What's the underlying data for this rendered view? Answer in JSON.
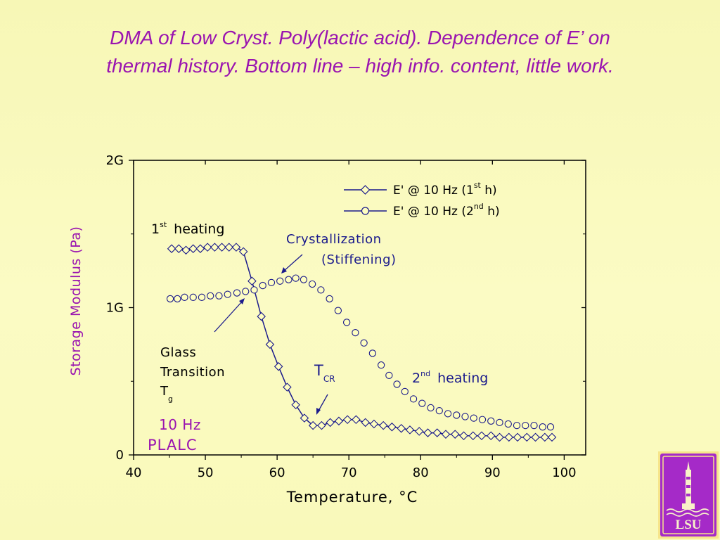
{
  "slide": {
    "title_line1": "DMA of Low Cryst. Poly(lactic acid). Dependence of E’ on",
    "title_line2": "thermal history.  Bottom line – high info. content, little work."
  },
  "logo": {
    "text": "LSU",
    "icon": "lsu-tower-logo"
  },
  "colors": {
    "background": "#fafabf",
    "accent": "#9a14b0",
    "series": "#1a1a8c"
  },
  "chart_data": {
    "type": "line",
    "xlabel": "Temperature, °C",
    "ylabel": "Storage Modulus (Pa)",
    "xlim": [
      40,
      103
    ],
    "ylim": [
      0,
      2
    ],
    "x_ticks": [
      40,
      50,
      60,
      70,
      80,
      90,
      100
    ],
    "x_tick_labels": [
      "40",
      "50",
      "60",
      "70",
      "80",
      "90",
      "100"
    ],
    "y_ticks": [
      0,
      1,
      2
    ],
    "y_tick_labels": [
      "0",
      "1G",
      "2G"
    ],
    "y_unit": "G (10^9 Pa)",
    "grid": false,
    "legend_position": "top-right",
    "legend": [
      {
        "marker": "diamond",
        "prefix": "E' @  10 Hz (1",
        "sup": "st",
        "suffix": " h)"
      },
      {
        "marker": "circle",
        "prefix": "E' @  10 Hz (2",
        "sup": "nd",
        "suffix": " h)"
      }
    ],
    "series": [
      {
        "name": "E' @ 10 Hz (1st h)",
        "marker": "diamond",
        "x": [
          45.3,
          46.3,
          47.3,
          48.3,
          49.3,
          50.3,
          51.3,
          52.3,
          53.3,
          54.3,
          55.3,
          56.5,
          57.8,
          59.0,
          60.2,
          61.4,
          62.6,
          63.8,
          65.0,
          66.2,
          67.4,
          68.6,
          69.8,
          71.0,
          72.3,
          73.5,
          74.8,
          76.0,
          77.3,
          78.5,
          79.8,
          81.0,
          82.3,
          83.5,
          84.8,
          86.0,
          87.3,
          88.5,
          89.8,
          91.0,
          92.3,
          93.5,
          94.8,
          96.0,
          97.3,
          98.3
        ],
        "y": [
          1.4,
          1.4,
          1.39,
          1.4,
          1.4,
          1.41,
          1.41,
          1.41,
          1.41,
          1.41,
          1.38,
          1.18,
          0.94,
          0.75,
          0.6,
          0.46,
          0.34,
          0.25,
          0.2,
          0.2,
          0.22,
          0.23,
          0.24,
          0.24,
          0.22,
          0.21,
          0.2,
          0.19,
          0.18,
          0.17,
          0.16,
          0.15,
          0.15,
          0.14,
          0.14,
          0.13,
          0.13,
          0.13,
          0.13,
          0.12,
          0.12,
          0.12,
          0.12,
          0.12,
          0.12,
          0.12
        ]
      },
      {
        "name": "E' @ 10 Hz (2nd h)",
        "marker": "circle",
        "x": [
          45.1,
          46.1,
          47.1,
          48.3,
          49.5,
          50.7,
          51.9,
          53.1,
          54.4,
          55.6,
          56.8,
          58.0,
          59.2,
          60.4,
          61.6,
          62.6,
          63.7,
          64.9,
          66.1,
          67.3,
          68.5,
          69.7,
          70.9,
          72.1,
          73.3,
          74.5,
          75.6,
          76.7,
          77.8,
          79.0,
          80.2,
          81.4,
          82.6,
          83.8,
          85.0,
          86.2,
          87.4,
          88.6,
          89.8,
          91.0,
          92.2,
          93.4,
          94.6,
          95.8,
          97.0,
          98.1
        ],
        "y": [
          1.06,
          1.06,
          1.07,
          1.07,
          1.07,
          1.08,
          1.08,
          1.09,
          1.1,
          1.11,
          1.12,
          1.15,
          1.17,
          1.18,
          1.19,
          1.2,
          1.19,
          1.16,
          1.12,
          1.06,
          0.98,
          0.9,
          0.83,
          0.76,
          0.69,
          0.61,
          0.54,
          0.48,
          0.43,
          0.38,
          0.35,
          0.32,
          0.3,
          0.28,
          0.27,
          0.26,
          0.25,
          0.24,
          0.23,
          0.22,
          0.21,
          0.2,
          0.2,
          0.2,
          0.19,
          0.19
        ]
      }
    ],
    "annotations": [
      {
        "id": "first-heating",
        "text": "1",
        "sup": "st",
        "rest": " heating"
      },
      {
        "id": "crystallization",
        "line1": "Crystallization",
        "line2": "(Stiffening)"
      },
      {
        "id": "glass-transition",
        "line1": "Glass",
        "line2": "Transition",
        "sym": "T",
        "sub": "g"
      },
      {
        "id": "tcr",
        "sym": "T",
        "sub": "CR"
      },
      {
        "id": "second-heating",
        "text": "2",
        "sup": "nd",
        "rest": " heating"
      },
      {
        "id": "freq",
        "text": "10 Hz"
      },
      {
        "id": "sample",
        "text": "PLALC"
      }
    ]
  }
}
